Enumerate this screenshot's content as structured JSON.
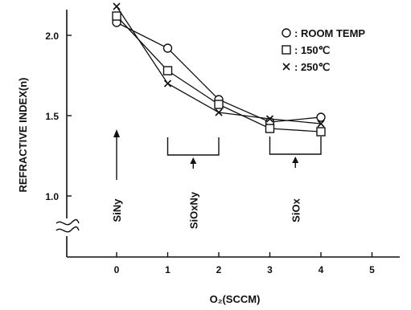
{
  "chart_data": {
    "type": "line",
    "xlabel": "O₂(SCCM)",
    "ylabel": "REFRACTIVE INDEX(n)",
    "xlim": [
      -1,
      5.5
    ],
    "ylim": [
      0.55,
      2.5
    ],
    "x_ticks": [
      "0",
      "1",
      "2",
      "3",
      "4",
      "5"
    ],
    "y_ticks": [
      "1.0",
      "1.5",
      "2.0",
      "2.5"
    ],
    "axis_break": "y",
    "grid": false,
    "legend_position": "top-right",
    "series": [
      {
        "name": "ROOM TEMP",
        "marker": "circle",
        "x": [
          0,
          1,
          2,
          3,
          4
        ],
        "y": [
          2.08,
          1.92,
          1.6,
          1.46,
          1.49
        ]
      },
      {
        "name": "150℃",
        "marker": "square",
        "x": [
          0,
          1,
          2,
          3,
          4
        ],
        "y": [
          2.12,
          1.78,
          1.57,
          1.42,
          1.4
        ]
      },
      {
        "name": "250℃",
        "marker": "cross",
        "x": [
          0,
          1,
          2,
          3,
          4
        ],
        "y": [
          2.18,
          1.7,
          1.52,
          1.48,
          1.45
        ]
      }
    ],
    "annotations": [
      {
        "text": "SiNy",
        "x": 0,
        "range": [
          0,
          0
        ]
      },
      {
        "text": "SiOxNy",
        "x": 1.5,
        "range": [
          1,
          2
        ]
      },
      {
        "text": "SiOx",
        "x": 3.5,
        "range": [
          3,
          4
        ]
      }
    ]
  }
}
